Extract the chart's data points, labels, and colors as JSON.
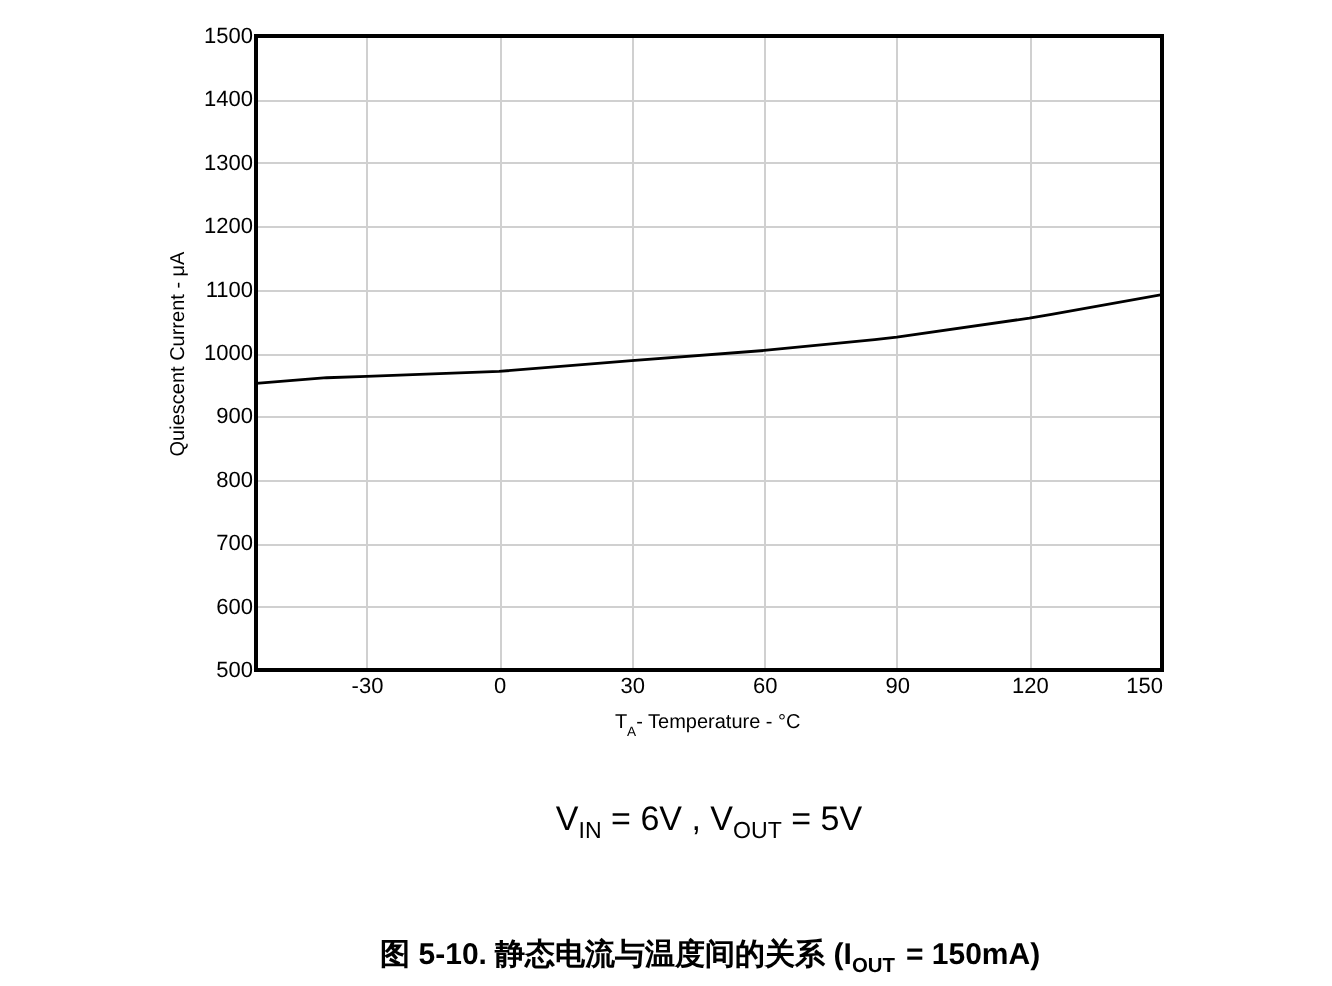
{
  "chart_data": {
    "type": "line",
    "title": "图 5-10. 静态电流与温度间的关系 (I$_{OUT}$ = 150mA)",
    "xlabel": "T$_{A}$- Temperature - °C",
    "ylabel": "Quiescent Current - μA",
    "annotations": [
      "V$_{IN}$ = 6V , V$_{OUT}$ = 5V"
    ],
    "series": [
      {
        "color": "#000000",
        "x": [
          -55,
          -39,
          -30,
          0,
          30,
          60,
          85,
          90,
          120,
          125,
          150
        ],
        "values": [
          952,
          961,
          963,
          971,
          988,
          1004,
          1021,
          1025,
          1055,
          1061,
          1092
        ]
      }
    ],
    "xlim": [
      -55,
      150
    ],
    "xticks": [
      -30,
      0,
      30,
      60,
      90,
      120,
      150
    ],
    "ylim": [
      500,
      1500
    ],
    "yticks": [
      500,
      600,
      700,
      800,
      900,
      1000,
      1100,
      1200,
      1300,
      1400,
      1500
    ],
    "grid": true,
    "marker": "none",
    "line_style": "solid"
  }
}
